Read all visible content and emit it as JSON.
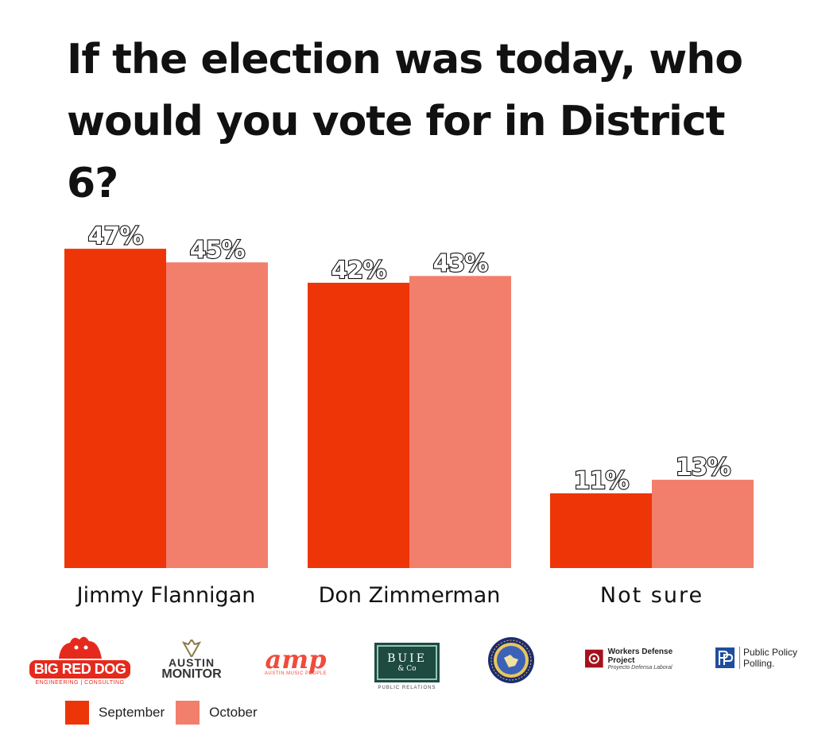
{
  "title": "If the election was today, who would you vote for in District 6?",
  "colors": {
    "september": "#ee3508",
    "october": "#f27f6b",
    "label_stroke": "#111111",
    "label_fill": "#ffffff"
  },
  "chart_data": {
    "type": "bar",
    "title": "If the election was today, who would you vote for in District 6?",
    "categories": [
      "Jimmy Flannigan",
      "Don Zimmerman",
      "Not sure"
    ],
    "series": [
      {
        "name": "September",
        "values": [
          47,
          42,
          11
        ],
        "labels": [
          "47%",
          "42%",
          "11%"
        ]
      },
      {
        "name": "October",
        "values": [
          45,
          43,
          13
        ],
        "labels": [
          "45%",
          "43%",
          "13%"
        ]
      }
    ],
    "unit": "%",
    "ylim": [
      0,
      50
    ],
    "grid": false,
    "legend": "bottom-left"
  },
  "legend": {
    "items": [
      {
        "label": "September",
        "color": "#ee3508"
      },
      {
        "label": "October",
        "color": "#f27f6b"
      }
    ]
  },
  "logos": {
    "bigreddog": {
      "main": "BIG RED DOG",
      "sub": "ENGINEERING | CONSULTING",
      "icon": "dog-icon"
    },
    "austin_monitor": {
      "line1": "AUSTIN",
      "line2": "MONITOR",
      "icon": "wings-icon"
    },
    "amp": {
      "main": "amp",
      "sub": "AUSTIN MUSIC PEOPLE"
    },
    "buie": {
      "line1": "BUIE",
      "line2": "& Co",
      "sub": "PUBLIC RELATIONS"
    },
    "seal": {
      "icon": "texas-seal-icon"
    },
    "workers": {
      "main": "Workers Defense Project",
      "sub": "Proyecto Defensa Laboral",
      "icon": "wdp-icon"
    },
    "ppp": {
      "line1": "Public Policy",
      "line2": "Polling.",
      "icon": "pp-icon"
    }
  }
}
